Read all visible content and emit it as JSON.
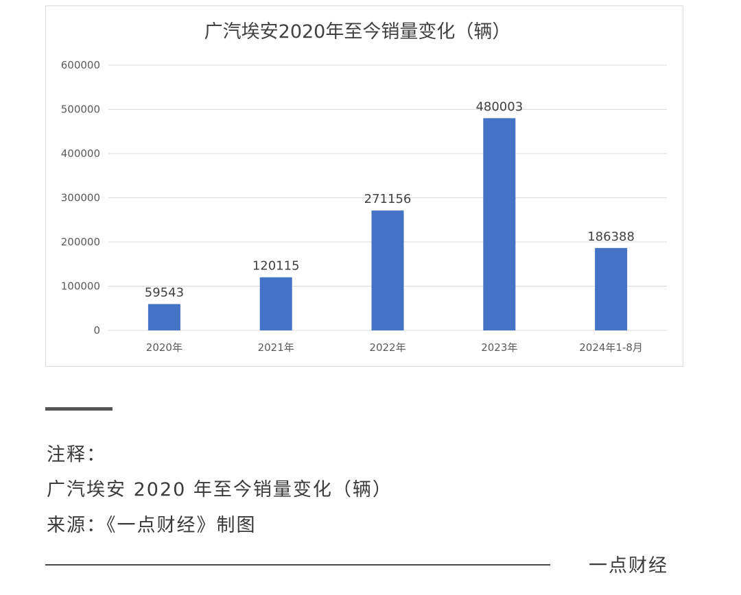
{
  "chart_data": {
    "type": "bar",
    "title": "广汽埃安2020年至今销量变化（辆）",
    "categories": [
      "2020年",
      "2021年",
      "2022年",
      "2023年",
      "2024年1-8月"
    ],
    "values": [
      59543,
      120115,
      271156,
      480003,
      186388
    ],
    "data_labels": [
      "59543",
      "120115",
      "271156",
      "480003",
      "186388"
    ],
    "yticks": [
      "0",
      "100000",
      "200000",
      "300000",
      "400000",
      "500000",
      "600000"
    ],
    "ylim": [
      0,
      600000
    ],
    "grid": true,
    "legend": "none",
    "bar_color": "#4472c4",
    "grid_color": "#d9d9d9"
  },
  "notes": {
    "label": "注释：",
    "text": "广汽埃安 2020 年至今销量变化（辆）",
    "source": "来源：《一点财经》制图"
  },
  "footer": {
    "brand": "一点财经"
  }
}
